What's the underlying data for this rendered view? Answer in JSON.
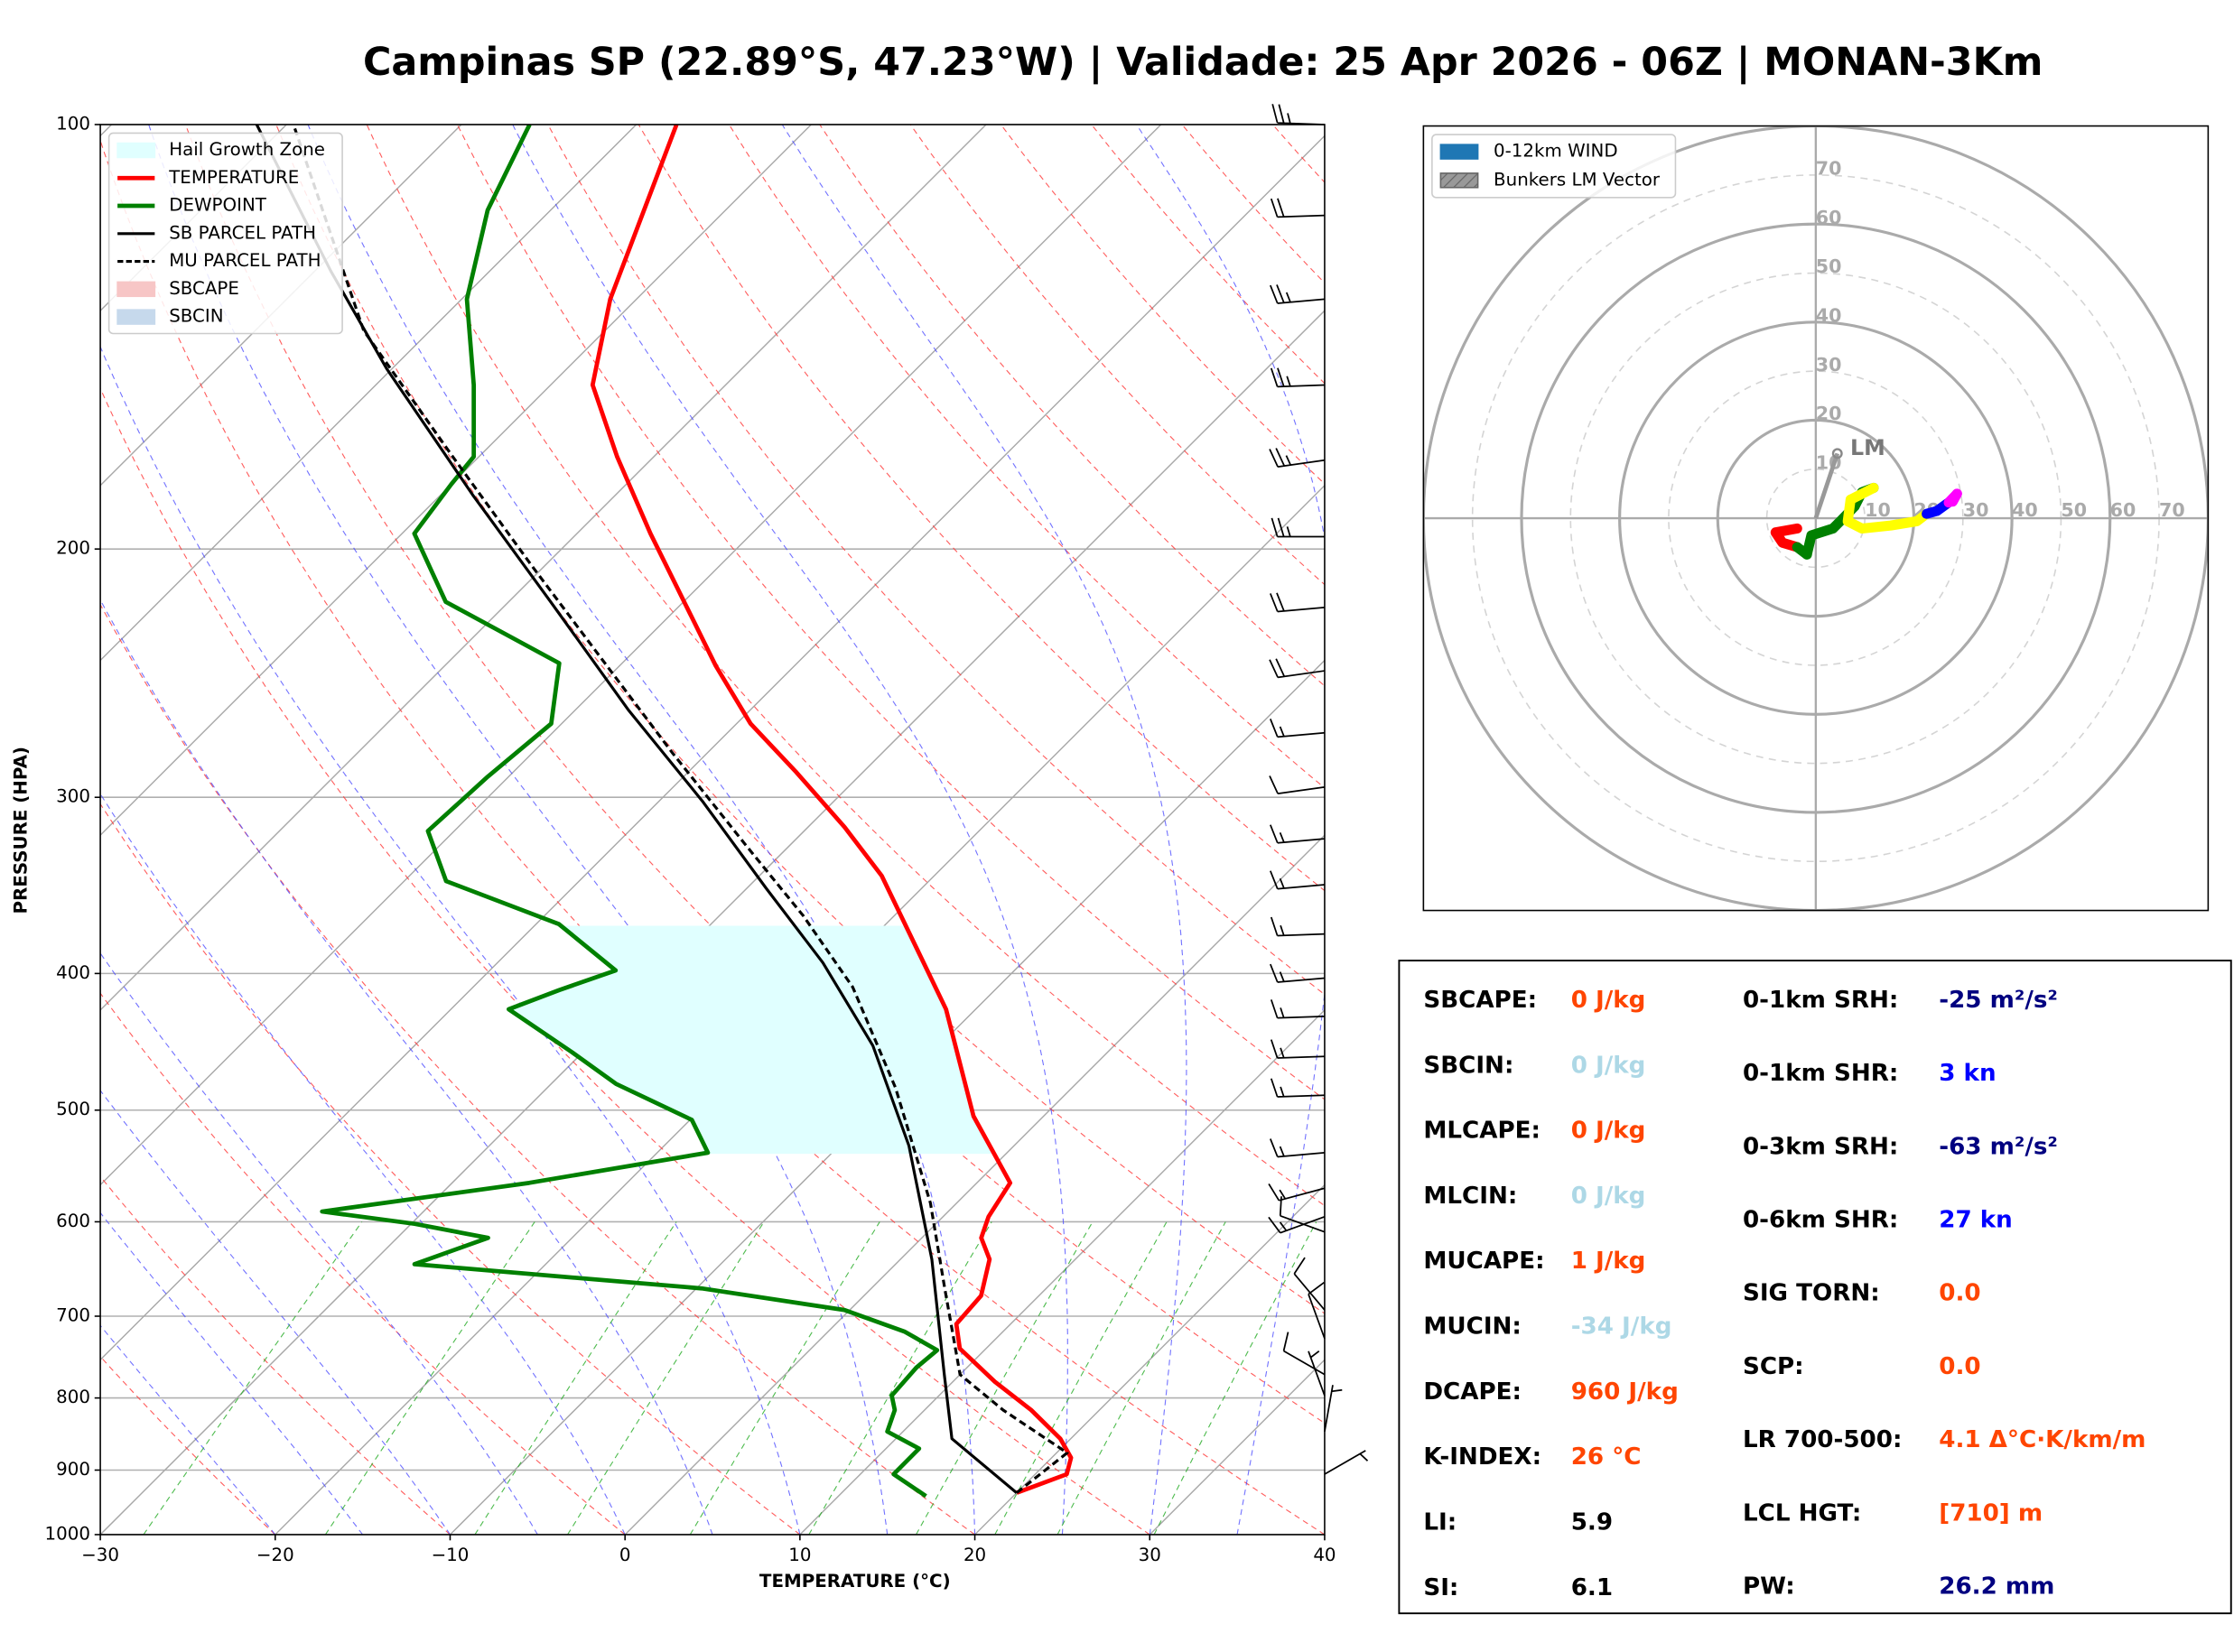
{
  "chart_data": [
    {
      "type": "skewt",
      "title": "Campinas SP (22.89°S, 47.23°W) | Validade: 25 Apr 2026 - 06Z | MONAN-3Km",
      "xlabel": "TEMPERATURE (°C)",
      "ylabel": "PRESSURE (HPA)",
      "xlim": [
        -30,
        40
      ],
      "ylim": [
        1000,
        100
      ],
      "ylog": true,
      "xticks": [
        {
          "value": -30,
          "label": "−30"
        },
        {
          "value": -20,
          "label": "−20"
        },
        {
          "value": -10,
          "label": "−10"
        },
        0,
        10,
        20,
        30,
        40
      ],
      "yticks": [
        100,
        200,
        300,
        400,
        500,
        600,
        700,
        800,
        900,
        1000
      ],
      "grid": true,
      "legend": "upper left",
      "hail_growth_zone": {
        "name": "Hail Growth Zone",
        "color": "#e0ffff",
        "pressure": [
          537,
          370
        ]
      },
      "series": [
        {
          "name": "TEMPERATURE",
          "color": "#ff0000",
          "style": "solid",
          "pressure": [
            934,
            906,
            882,
            855,
            816,
            779,
            738,
            709,
            677,
            638,
            616,
            595,
            563,
            505,
            424,
            341,
            315,
            288,
            266,
            242,
            195,
            172,
            153,
            133,
            100
          ],
          "values": [
            20.0,
            21.8,
            21.1,
            19.4,
            16.1,
            12.4,
            8.5,
            6.9,
            6.7,
            5.1,
            3.4,
            2.6,
            1.9,
            -4.0,
            -11.7,
            -23.0,
            -27.9,
            -33.8,
            -39.2,
            -44.5,
            -55.8,
            -62.1,
            -67.6,
            -71.5,
            -77.7
          ]
        },
        {
          "name": "DEWPOINT",
          "color": "#008000",
          "style": "solid",
          "pressure": [
            939,
            906,
            869,
            845,
            816,
            797,
            761,
            740,
            718,
            693,
            669,
            643,
            616,
            602,
            590,
            563,
            536,
            508,
            479,
            455,
            424,
            411,
            398,
            369,
            344,
            317,
            290,
            266,
            241,
            218,
            195,
            180,
            172,
            153,
            133,
            115,
            100
          ],
          "values": [
            15.0,
            11.9,
            11.9,
            9.1,
            8.3,
            7.3,
            7.1,
            7.3,
            4.4,
            -0.3,
            -9.7,
            -27.5,
            -24.8,
            -29.8,
            -35.8,
            -25.6,
            -17.1,
            -19.9,
            -26.3,
            -30.6,
            -36.7,
            -34.9,
            -32.8,
            -38.7,
            -47.6,
            -51.5,
            -51.2,
            -50.6,
            -53.6,
            -63.6,
            -69.3,
            -70.0,
            -70.3,
            -74.4,
            -79.7,
            -83.6,
            -86.1
          ]
        },
        {
          "name": "SB PARCEL PATH",
          "color": "#000000",
          "style": "solid",
          "pressure": [
            934,
            855,
            770,
            638,
            530,
            450,
            393,
            348,
            302,
            260,
            218,
            183,
            149,
            127,
            100
          ],
          "values": [
            20.0,
            13.2,
            9.1,
            1.8,
            -6.0,
            -13.8,
            -21.4,
            -28.9,
            -37.5,
            -47.0,
            -57.6,
            -68.2,
            -80.3,
            -89.1,
            -101.7
          ]
        },
        {
          "name": "MU PARCEL PATH",
          "color": "#000000",
          "style": "dashed",
          "pressure": [
            934,
            875,
            816,
            770,
            669,
            582,
            482,
            409,
            364,
            324,
            279,
            239,
            205,
            172,
            140,
            100
          ],
          "values": [
            20.0,
            20.6,
            14.5,
            10.0,
            4.2,
            -1.5,
            -10.1,
            -18.3,
            -25.2,
            -32.6,
            -42.0,
            -51.5,
            -60.9,
            -71.5,
            -83.8,
            -99.6
          ]
        }
      ],
      "areas": [
        {
          "name": "SBCAPE",
          "color": "#f7c6c6"
        },
        {
          "name": "SBCIN",
          "color": "#c6d9ec"
        }
      ],
      "wind_barbs": {
        "pressure": [
          100,
          116,
          133,
          153,
          173,
          196,
          220,
          244,
          270,
          295,
          321,
          346,
          375,
          403,
          429,
          458,
          488,
          536,
          568,
          595,
          610,
          693,
          726,
          770,
          797,
          845,
          906
        ],
        "direction": [
          272,
          268,
          265,
          268,
          262,
          270,
          265,
          262,
          265,
          262,
          265,
          265,
          268,
          265,
          268,
          268,
          268,
          265,
          255,
          250,
          290,
          320,
          340,
          300,
          340,
          10,
          60
        ],
        "speed": [
          25,
          20,
          25,
          25,
          25,
          25,
          20,
          20,
          15,
          10,
          15,
          15,
          15,
          15,
          15,
          15,
          15,
          15,
          15,
          15,
          10,
          10,
          10,
          10,
          5,
          5,
          5
        ]
      }
    },
    {
      "type": "hodograph",
      "xlim": [
        -80,
        80
      ],
      "ylim": [
        -80,
        80
      ],
      "rticks": [
        10,
        20,
        30,
        40,
        50,
        60,
        70
      ],
      "legend": [
        {
          "name": "0-12km WIND",
          "color": "#1f77b4"
        },
        {
          "name": "Bunkers LM Vector",
          "color": "#999999"
        }
      ],
      "segments": [
        {
          "color": "#ff0000",
          "u": [
            -3.8,
            -8.2,
            -6.8,
            -3.8
          ],
          "v": [
            -2.1,
            -2.9,
            -5.0,
            -5.9
          ]
        },
        {
          "color": "#008000",
          "u": [
            -1.8,
            -0.9,
            3.5,
            5.0,
            7.9,
            9.4,
            11.8
          ],
          "v": [
            -7.4,
            -3.5,
            -2.1,
            -0.6,
            2.4,
            5.3,
            6.2
          ]
        },
        {
          "color": "#ffff00",
          "u": [
            7.1,
            6.5,
            9.4,
            15.3,
            20.6,
            22.6
          ],
          "v": [
            3.8,
            -0.6,
            -2.1,
            -1.5,
            -0.6,
            0.9
          ]
        },
        {
          "color": "#0000ff",
          "u": [
            24.7,
            27.1
          ],
          "v": [
            1.5,
            3.2
          ]
        },
        {
          "color": "#ff00ff",
          "u": [
            28.8,
            27.9
          ],
          "v": [
            5.0,
            3.4
          ]
        }
      ],
      "bunkers_lm": {
        "label": "LM",
        "u": 4.4,
        "v": 13.2
      }
    }
  ],
  "indices": {
    "left": [
      {
        "label": "SBCAPE:",
        "value": "0 J/kg",
        "color": "#ff4500"
      },
      {
        "label": "SBCIN:",
        "value": "0 J/kg",
        "color": "#add8e6"
      },
      {
        "label": "MLCAPE:",
        "value": "0 J/kg",
        "color": "#ff4500"
      },
      {
        "label": "MLCIN:",
        "value": "0 J/kg",
        "color": "#add8e6"
      },
      {
        "label": "MUCAPE:",
        "value": "1 J/kg",
        "color": "#ff4500"
      },
      {
        "label": "MUCIN:",
        "value": "-34 J/kg",
        "color": "#add8e6"
      },
      {
        "label": "DCAPE:",
        "value": "960 J/kg",
        "color": "#ff4500"
      },
      {
        "label": "K-INDEX:",
        "value": "26 °C",
        "color": "#ff4500"
      },
      {
        "label": "LI:",
        "value": "5.9",
        "color": "#000000"
      },
      {
        "label": "SI:",
        "value": "6.1",
        "color": "#000000"
      }
    ],
    "right": [
      {
        "label": "0-1km SRH:",
        "value": "-25 m²/s²",
        "color": "#000080"
      },
      {
        "label": "0-1km SHR:",
        "value": "3 kn",
        "color": "#0000ff"
      },
      {
        "label": "0-3km SRH:",
        "value": "-63 m²/s²",
        "color": "#000080"
      },
      {
        "label": "0-6km SHR:",
        "value": "27 kn",
        "color": "#0000ff"
      },
      {
        "label": "SIG TORN:",
        "value": "0.0",
        "color": "#ff4500"
      },
      {
        "label": "SCP:",
        "value": "0.0",
        "color": "#ff4500"
      },
      {
        "label": "LR 700-500:",
        "value": "4.1 Δ°C·K/km/m",
        "color": "#ff4500"
      },
      {
        "label": "LCL HGT:",
        "value": "[710] m",
        "color": "#ff4500"
      },
      {
        "label": "PW:",
        "value": "26.2 mm",
        "color": "#000080"
      }
    ]
  }
}
